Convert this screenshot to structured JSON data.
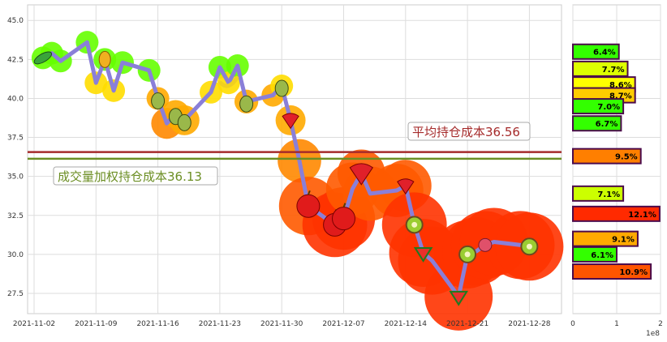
{
  "chart_data": [
    {
      "type": "line",
      "x_ticks": [
        "2021-11-02",
        "2021-11-09",
        "2021-11-16",
        "2021-11-23",
        "2021-11-30",
        "2021-12-07",
        "2021-12-14",
        "2021-12-21",
        "2021-12-28"
      ],
      "y_ticks": [
        "27.5",
        "30.0",
        "32.5",
        "35.0",
        "37.5",
        "40.0",
        "42.5",
        "45.0"
      ],
      "ylim": [
        26.2,
        46.0
      ],
      "grid": true,
      "series": [
        {
          "x": [
            "2021-11-03",
            "2021-11-04",
            "2021-11-05",
            "2021-11-08",
            "2021-11-09",
            "2021-11-10",
            "2021-11-11",
            "2021-11-12",
            "2021-11-15",
            "2021-11-16",
            "2021-11-17",
            "2021-11-18",
            "2021-11-19",
            "2021-11-22",
            "2021-11-23",
            "2021-11-24",
            "2021-11-25",
            "2021-11-26",
            "2021-11-29",
            "2021-11-30",
            "2021-12-01",
            "2021-12-02",
            "2021-12-03",
            "2021-12-06",
            "2021-12-07",
            "2021-12-08",
            "2021-12-09",
            "2021-12-10",
            "2021-12-13",
            "2021-12-14",
            "2021-12-15",
            "2021-12-16",
            "2021-12-17",
            "2021-12-20",
            "2021-12-21",
            "2021-12-22",
            "2021-12-23",
            "2021-12-24",
            "2021-12-27",
            "2021-12-28"
          ],
          "y": [
            42.6,
            42.9,
            42.4,
            43.6,
            41.0,
            42.5,
            40.5,
            42.3,
            41.8,
            40.0,
            38.4,
            39.0,
            38.6,
            40.4,
            42.0,
            41.0,
            42.1,
            39.8,
            40.2,
            40.8,
            38.6,
            36.0,
            33.1,
            31.9,
            32.3,
            34.2,
            35.2,
            33.9,
            34.1,
            34.4,
            31.9,
            30.1,
            29.6,
            27.3,
            30.0,
            30.2,
            30.6,
            30.8,
            30.6,
            30.5
          ]
        }
      ],
      "hlines": [
        {
          "label": "平均持仓成本36.56",
          "y": 36.56,
          "color": "#a52a2a"
        },
        {
          "label": "成交量加权持仓成本36.13",
          "y": 36.13,
          "color": "#6b8e23"
        }
      ]
    },
    {
      "type": "bar",
      "orientation": "horizontal",
      "x_ticks": [
        "0",
        "1",
        "2"
      ],
      "x_multiplier": "1e8",
      "xlim": [
        0,
        2.0
      ],
      "bars": [
        {
          "y": 43.0,
          "value": 1.05,
          "label": "6.4%",
          "color": "#33ff00"
        },
        {
          "y": 41.9,
          "value": 1.25,
          "label": "7.7%",
          "color": "#ddff00"
        },
        {
          "y": 40.9,
          "value": 1.42,
          "label": "8.6%",
          "color": "#ffff00"
        },
        {
          "y": 40.2,
          "value": 1.42,
          "label": "8.7%",
          "color": "#ffcc00"
        },
        {
          "y": 39.5,
          "value": 1.15,
          "label": "7.0%",
          "color": "#33ff00"
        },
        {
          "y": 38.4,
          "value": 1.1,
          "label": "6.7%",
          "color": "#33ff00"
        },
        {
          "y": 36.3,
          "value": 1.55,
          "label": "9.5%",
          "color": "#ff7f00"
        },
        {
          "y": 33.9,
          "value": 1.15,
          "label": "7.1%",
          "color": "#ccff00"
        },
        {
          "y": 32.6,
          "value": 1.98,
          "label": "12.1%",
          "color": "#ff2a00"
        },
        {
          "y": 31.0,
          "value": 1.48,
          "label": "9.1%",
          "color": "#ffaa00"
        },
        {
          "y": 30.0,
          "value": 1.0,
          "label": "6.1%",
          "color": "#33ff00"
        },
        {
          "y": 28.9,
          "value": 1.78,
          "label": "10.9%",
          "color": "#ff5500"
        }
      ]
    }
  ]
}
